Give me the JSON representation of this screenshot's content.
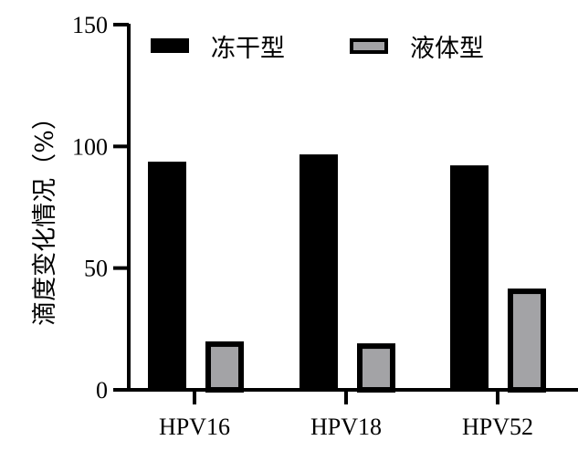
{
  "chart_data": {
    "type": "bar",
    "title": "",
    "xlabel": "",
    "ylabel": "滴度变化情况（%）",
    "ylim": [
      0,
      150
    ],
    "yticks": [
      0,
      50,
      100,
      150
    ],
    "grid": false,
    "legend_position": "top",
    "categories": [
      "HPV16",
      "HPV18",
      "HPV52"
    ],
    "series": [
      {
        "name": "冻干型",
        "color": "#000000",
        "values": [
          93.7,
          96.7,
          92.2
        ]
      },
      {
        "name": "液体型",
        "color": "#a3a3a6",
        "edge_color": "#000000",
        "values": [
          19.9,
          19.1,
          41.6
        ]
      }
    ]
  },
  "axis": {
    "y_tick_labels": [
      "0",
      "50",
      "100",
      "150"
    ],
    "x_tick_labels": [
      "HPV16",
      "HPV18",
      "HPV52"
    ]
  },
  "legend": {
    "items": [
      {
        "label": "冻干型"
      },
      {
        "label": "液体型"
      }
    ]
  }
}
